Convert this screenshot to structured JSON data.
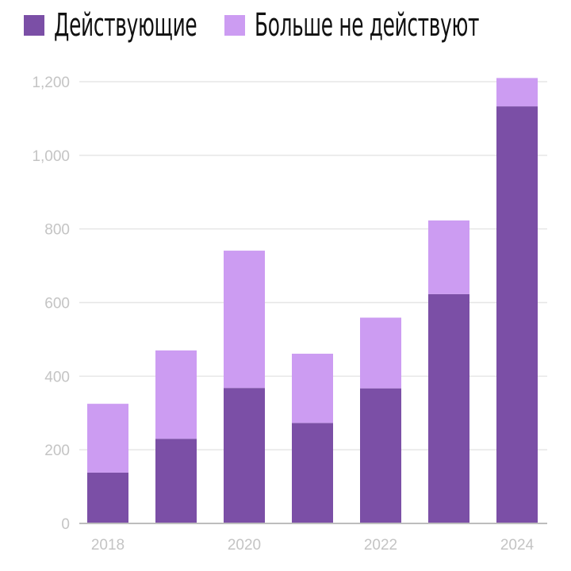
{
  "legend": {
    "items": [
      {
        "label": "Действующие",
        "color": "#7b4fa6"
      },
      {
        "label": "Больше не действуют",
        "color": "#cc9cf2"
      }
    ]
  },
  "chart_data": {
    "type": "bar",
    "stacked": true,
    "categories": [
      "2018",
      "2019",
      "2020",
      "2021",
      "2022",
      "2023",
      "2024"
    ],
    "x_tick_labels": [
      "2018",
      "",
      "2020",
      "",
      "2022",
      "",
      "2024"
    ],
    "series": [
      {
        "name": "Действующие",
        "color": "#7b4fa6",
        "values": [
          138,
          230,
          368,
          273,
          367,
          623,
          1133
        ]
      },
      {
        "name": "Больше не действуют",
        "color": "#cc9cf2",
        "values": [
          187,
          240,
          373,
          188,
          192,
          200,
          77
        ]
      }
    ],
    "ylim": [
      0,
      1200
    ],
    "y_ticks": [
      0,
      200,
      400,
      600,
      800,
      1000,
      1200
    ],
    "y_tick_labels": [
      "0",
      "200",
      "400",
      "600",
      "800",
      "1,000",
      "1,200"
    ],
    "grid": true,
    "legend_position": "top-left",
    "title": "",
    "xlabel": "",
    "ylabel": ""
  }
}
